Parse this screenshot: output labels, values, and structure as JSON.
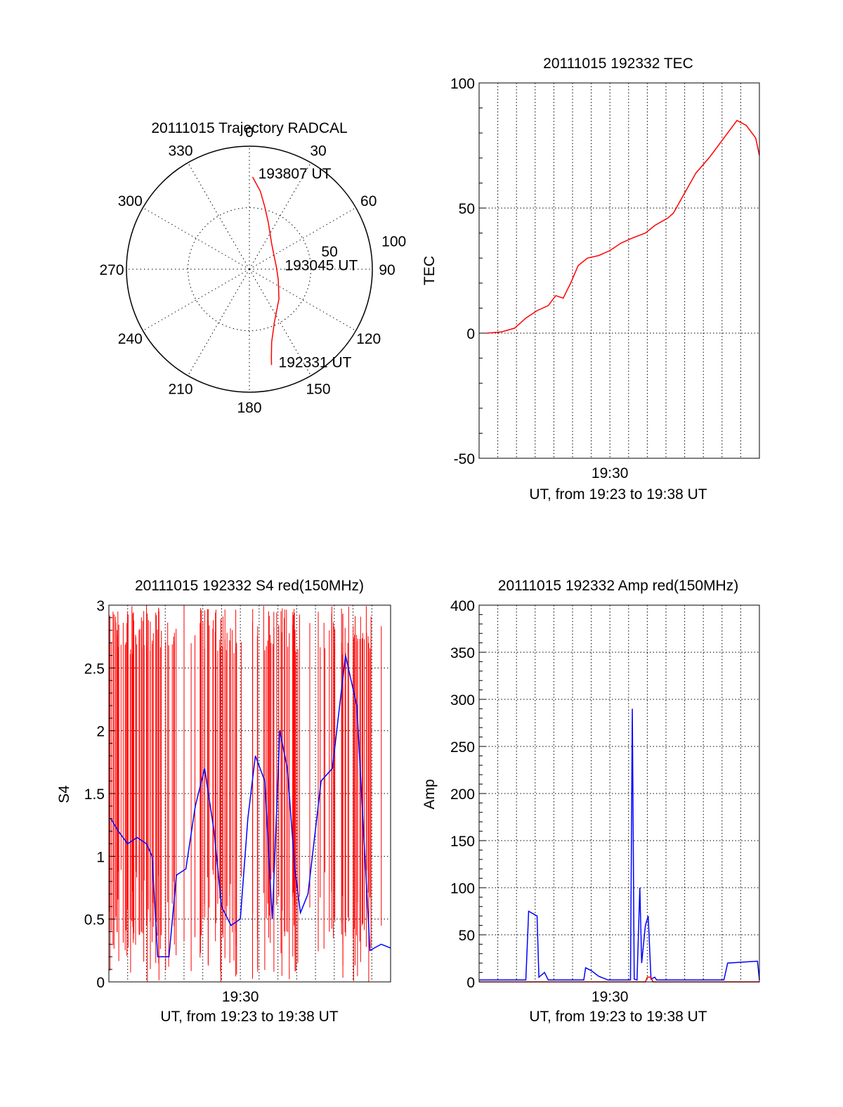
{
  "chart_data": [
    {
      "id": "trajectory",
      "type": "scatter",
      "projection": "polar",
      "title": "20111015 Trajectory RADCAL",
      "angle_labels": [
        "0",
        "30",
        "60",
        "90",
        "120",
        "150",
        "180",
        "210",
        "240",
        "270",
        "300",
        "330"
      ],
      "radius_labels": [
        "50",
        "100"
      ],
      "rlim": [
        0,
        100
      ],
      "grid": true,
      "series": [
        {
          "color": "#ff0000",
          "points": [
            [
              2,
              75
            ],
            [
              8,
              64
            ],
            [
              14,
              52
            ],
            [
              22,
              41
            ],
            [
              40,
              28
            ],
            [
              60,
              23
            ],
            [
              85,
              22
            ],
            [
              110,
              25
            ],
            [
              135,
              34
            ],
            [
              155,
              48
            ],
            [
              163,
              62
            ],
            [
              166,
              74
            ],
            [
              167,
              80
            ]
          ]
        }
      ],
      "annotations": [
        {
          "text": "193807 UT"
        },
        {
          "text": "193045 UT"
        },
        {
          "text": "192331 UT"
        }
      ]
    },
    {
      "id": "tec",
      "type": "line",
      "title": "20111015 192332 TEC",
      "ylabel": "TEC",
      "xlabel": "UT, from 19:23 to 19:38 UT",
      "xlim": [
        0,
        15
      ],
      "ylim": [
        -50,
        100
      ],
      "xticks": [
        {
          "value": 7,
          "label": "19:30"
        }
      ],
      "yticks": [
        "-50",
        "0",
        "50",
        "100"
      ],
      "grid": true,
      "series": [
        {
          "color": "#ff0000",
          "x": [
            0.4,
            1.2,
            1.9,
            2.5,
            3.1,
            3.7,
            4.1,
            4.5,
            4.9,
            5.3,
            5.8,
            6.4,
            7.0,
            7.6,
            8.2,
            8.9,
            9.4,
            10.1,
            10.4,
            11.0,
            11.6,
            12.3,
            12.8,
            13.3,
            13.8,
            14.3,
            14.8,
            15.0
          ],
          "y": [
            0,
            0.5,
            2,
            6,
            9,
            11,
            15,
            14,
            20,
            27,
            30,
            31,
            33,
            36,
            38,
            40,
            43,
            46,
            48,
            56,
            64,
            70,
            75,
            80,
            85,
            83,
            78,
            71
          ]
        }
      ]
    },
    {
      "id": "s4",
      "type": "line",
      "title": "20111015 192332 S4 red(150MHz)",
      "ylabel": "S4",
      "xlabel": "UT, from 19:23 to 19:38 UT",
      "xlim": [
        0,
        15
      ],
      "ylim": [
        0,
        3
      ],
      "xticks": [
        {
          "value": 7,
          "label": "19:30"
        }
      ],
      "yticks": [
        "0",
        "0.5",
        "1",
        "1.5",
        "2",
        "2.5",
        "3"
      ],
      "grid": true,
      "series": [
        {
          "color": "#0000ff",
          "x": [
            0.1,
            0.5,
            1.0,
            1.5,
            2.0,
            2.3,
            2.6,
            3.2,
            3.6,
            4.1,
            4.6,
            5.1,
            5.6,
            6.0,
            6.5,
            7.0,
            7.4,
            7.8,
            8.3,
            8.7,
            9.1,
            9.5,
            9.9,
            10.2,
            10.6,
            11.3,
            11.9,
            12.6,
            13.2,
            13.9,
            14.5,
            15.0
          ],
          "y": [
            1.3,
            1.2,
            1.1,
            1.15,
            1.1,
            1.0,
            0.2,
            0.2,
            0.85,
            0.9,
            1.4,
            1.7,
            1.2,
            0.6,
            0.45,
            0.5,
            1.3,
            1.8,
            1.6,
            0.5,
            2.0,
            1.7,
            0.9,
            0.55,
            0.7,
            1.6,
            1.7,
            2.6,
            2.2,
            0.25,
            0.3,
            0.27
          ]
        }
      ],
      "noise_band": {
        "color": "#ff0000",
        "x_start": 0,
        "x_end": 15,
        "y_range": [
          0,
          3
        ]
      }
    },
    {
      "id": "amp",
      "type": "line",
      "title": "20111015 192332 Amp red(150MHz)",
      "ylabel": "Amp",
      "xlabel": "UT, from 19:23 to 19:38 UT",
      "xlim": [
        0,
        15
      ],
      "ylim": [
        0,
        400
      ],
      "xticks": [
        {
          "value": 7,
          "label": "19:30"
        }
      ],
      "yticks": [
        "0",
        "50",
        "100",
        "150",
        "200",
        "250",
        "300",
        "350",
        "400"
      ],
      "grid": true,
      "series": [
        {
          "color": "#0000ff",
          "x": [
            0.0,
            2.5,
            2.6,
            2.65,
            3.1,
            3.2,
            3.5,
            3.7,
            5.6,
            5.7,
            6.0,
            6.4,
            6.9,
            8.1,
            8.2,
            8.3,
            8.45,
            8.6,
            8.7,
            8.9,
            9.05,
            9.2,
            9.4,
            9.5,
            9.8,
            10.2,
            13.1,
            13.3,
            14.9,
            15.0
          ],
          "y": [
            2,
            2,
            50,
            75,
            70,
            5,
            10,
            2,
            2,
            15,
            12,
            6,
            2,
            2,
            290,
            3,
            2,
            100,
            20,
            60,
            70,
            3,
            5,
            2,
            2,
            2,
            2,
            20,
            22,
            2
          ]
        },
        {
          "color": "#ff0000",
          "x": [
            0.0,
            8.9,
            9.0,
            9.2,
            9.3,
            15.0
          ],
          "y": [
            0,
            0,
            5,
            5,
            0,
            0
          ]
        }
      ]
    }
  ]
}
